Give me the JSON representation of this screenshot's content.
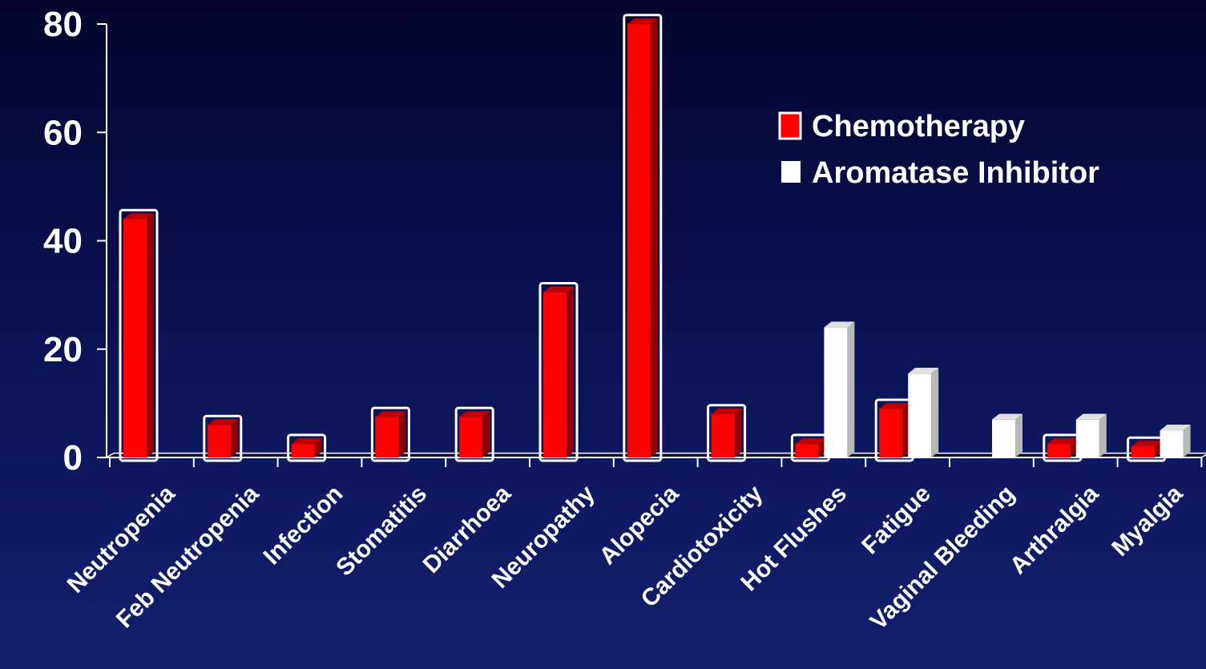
{
  "chart_data": {
    "type": "bar",
    "categories": [
      "Neutropenia",
      "Feb Neutropenia",
      "Infection",
      "Stomatitis",
      "Diarrhoea",
      "Neuropathy",
      "Alopecia",
      "Cardiotoxicity",
      "Hot Flushes",
      "Fatigue",
      "Vaginal Bleeding",
      "Arthralgia",
      "Myalgia"
    ],
    "series": [
      {
        "name": "Chemotherapy",
        "color": "#ff0000",
        "values": [
          44,
          6,
          2.5,
          7.5,
          7.5,
          30.5,
          80,
          8,
          2.5,
          9,
          0,
          2.5,
          2
        ]
      },
      {
        "name": "Aromatase Inhibitor",
        "color": "#ffffff",
        "values": [
          0,
          0,
          0,
          0,
          0,
          0,
          0,
          0,
          24,
          15.5,
          7,
          7,
          5
        ]
      }
    ],
    "ylim": [
      0,
      80
    ],
    "yticks": [
      "0",
      "20",
      "40",
      "60",
      "80"
    ],
    "legend_position": "top-right",
    "grid": false
  }
}
